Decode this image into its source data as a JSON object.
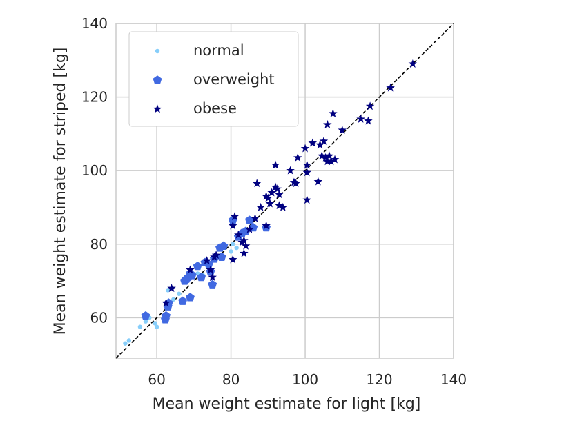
{
  "chart_data": {
    "type": "scatter",
    "title": "",
    "xlabel": "Mean weight estimate for light [kg]",
    "ylabel": "Mean weight estimate for striped [kg]",
    "xlim": [
      49,
      140
    ],
    "ylim": [
      49,
      140
    ],
    "xticks": [
      60,
      80,
      100,
      120,
      140
    ],
    "yticks": [
      60,
      80,
      100,
      120,
      140
    ],
    "grid": true,
    "legend_position": "top-left",
    "reference_line": {
      "style": "dashed",
      "color": "#000000",
      "from": [
        49,
        49
      ],
      "to": [
        140,
        140
      ]
    },
    "series": [
      {
        "name": "normal",
        "marker": "circle",
        "color": "#87cefa",
        "points": [
          [
            51.5,
            53.0
          ],
          [
            52.5,
            53.8
          ],
          [
            55.5,
            57.5
          ],
          [
            57.0,
            59.0
          ],
          [
            58.0,
            60.0
          ],
          [
            59.5,
            58.5
          ],
          [
            60.0,
            57.5
          ],
          [
            62.5,
            60.0
          ],
          [
            63.0,
            67.5
          ],
          [
            64.5,
            65.0
          ],
          [
            66.0,
            66.5
          ],
          [
            71.0,
            72.0
          ],
          [
            72.5,
            71.5
          ],
          [
            80.0,
            78.0
          ],
          [
            80.5,
            80.0
          ],
          [
            81.5,
            79.0
          ],
          [
            85.0,
            84.0
          ]
        ]
      },
      {
        "name": "overweight",
        "marker": "pentagon",
        "color": "#4169e1",
        "points": [
          [
            57.0,
            60.5
          ],
          [
            62.3,
            59.5
          ],
          [
            62.5,
            60.5
          ],
          [
            63.0,
            63.0
          ],
          [
            63.2,
            64.0
          ],
          [
            67.0,
            64.5
          ],
          [
            67.5,
            70.0
          ],
          [
            68.0,
            70.5
          ],
          [
            68.5,
            71.0
          ],
          [
            69.0,
            72.0
          ],
          [
            69.5,
            71.5
          ],
          [
            69.0,
            65.5
          ],
          [
            71.0,
            74.0
          ],
          [
            72.0,
            71.0
          ],
          [
            73.0,
            75.0
          ],
          [
            74.0,
            74.5
          ],
          [
            74.5,
            72.5
          ],
          [
            75.0,
            69.0
          ],
          [
            75.5,
            76.0
          ],
          [
            77.0,
            79.0
          ],
          [
            77.5,
            76.5
          ],
          [
            78.0,
            79.5
          ],
          [
            80.5,
            86.5
          ],
          [
            82.0,
            82.0
          ],
          [
            83.0,
            83.0
          ],
          [
            84.0,
            83.5
          ],
          [
            85.0,
            86.5
          ],
          [
            86.0,
            84.5
          ],
          [
            89.5,
            84.5
          ]
        ]
      },
      {
        "name": "obese",
        "marker": "star",
        "color": "#000080",
        "points": [
          [
            62.5,
            64.0
          ],
          [
            64.0,
            68.0
          ],
          [
            69.0,
            73.0
          ],
          [
            73.5,
            75.5
          ],
          [
            74.5,
            73.0
          ],
          [
            75.0,
            71.0
          ],
          [
            75.5,
            76.5
          ],
          [
            76.0,
            77.0
          ],
          [
            80.5,
            75.8
          ],
          [
            80.5,
            85.0
          ],
          [
            81.0,
            87.5
          ],
          [
            82.0,
            82.5
          ],
          [
            83.0,
            80.5
          ],
          [
            83.5,
            81.0
          ],
          [
            84.0,
            79.5
          ],
          [
            83.5,
            77.5
          ],
          [
            85.0,
            84.0
          ],
          [
            86.5,
            87.0
          ],
          [
            87.0,
            96.5
          ],
          [
            88.0,
            90.0
          ],
          [
            89.5,
            85.0
          ],
          [
            89.5,
            93.0
          ],
          [
            90.0,
            92.5
          ],
          [
            90.5,
            91.0
          ],
          [
            91.0,
            94.0
          ],
          [
            92.0,
            95.5
          ],
          [
            92.0,
            101.5
          ],
          [
            92.5,
            95.0
          ],
          [
            93.0,
            90.5
          ],
          [
            93.0,
            93.5
          ],
          [
            94.0,
            90.0
          ],
          [
            96.0,
            100.0
          ],
          [
            97.0,
            96.8
          ],
          [
            97.5,
            96.5
          ],
          [
            98.0,
            103.5
          ],
          [
            100.0,
            106.0
          ],
          [
            100.5,
            101.5
          ],
          [
            100.5,
            99.5
          ],
          [
            100.5,
            92.0
          ],
          [
            102.0,
            107.5
          ],
          [
            103.5,
            97.0
          ],
          [
            104.0,
            107.0
          ],
          [
            104.5,
            104.0
          ],
          [
            105.0,
            108.0
          ],
          [
            105.5,
            103.5
          ],
          [
            106.0,
            102.5
          ],
          [
            106.0,
            112.5
          ],
          [
            106.5,
            104.0
          ],
          [
            107.0,
            102.5
          ],
          [
            107.5,
            115.5
          ],
          [
            108.0,
            103.0
          ],
          [
            110.0,
            111.0
          ],
          [
            115.0,
            114.0
          ],
          [
            117.0,
            113.5
          ],
          [
            117.5,
            117.5
          ],
          [
            123.0,
            122.5
          ],
          [
            129.0,
            129.0
          ]
        ]
      }
    ]
  }
}
